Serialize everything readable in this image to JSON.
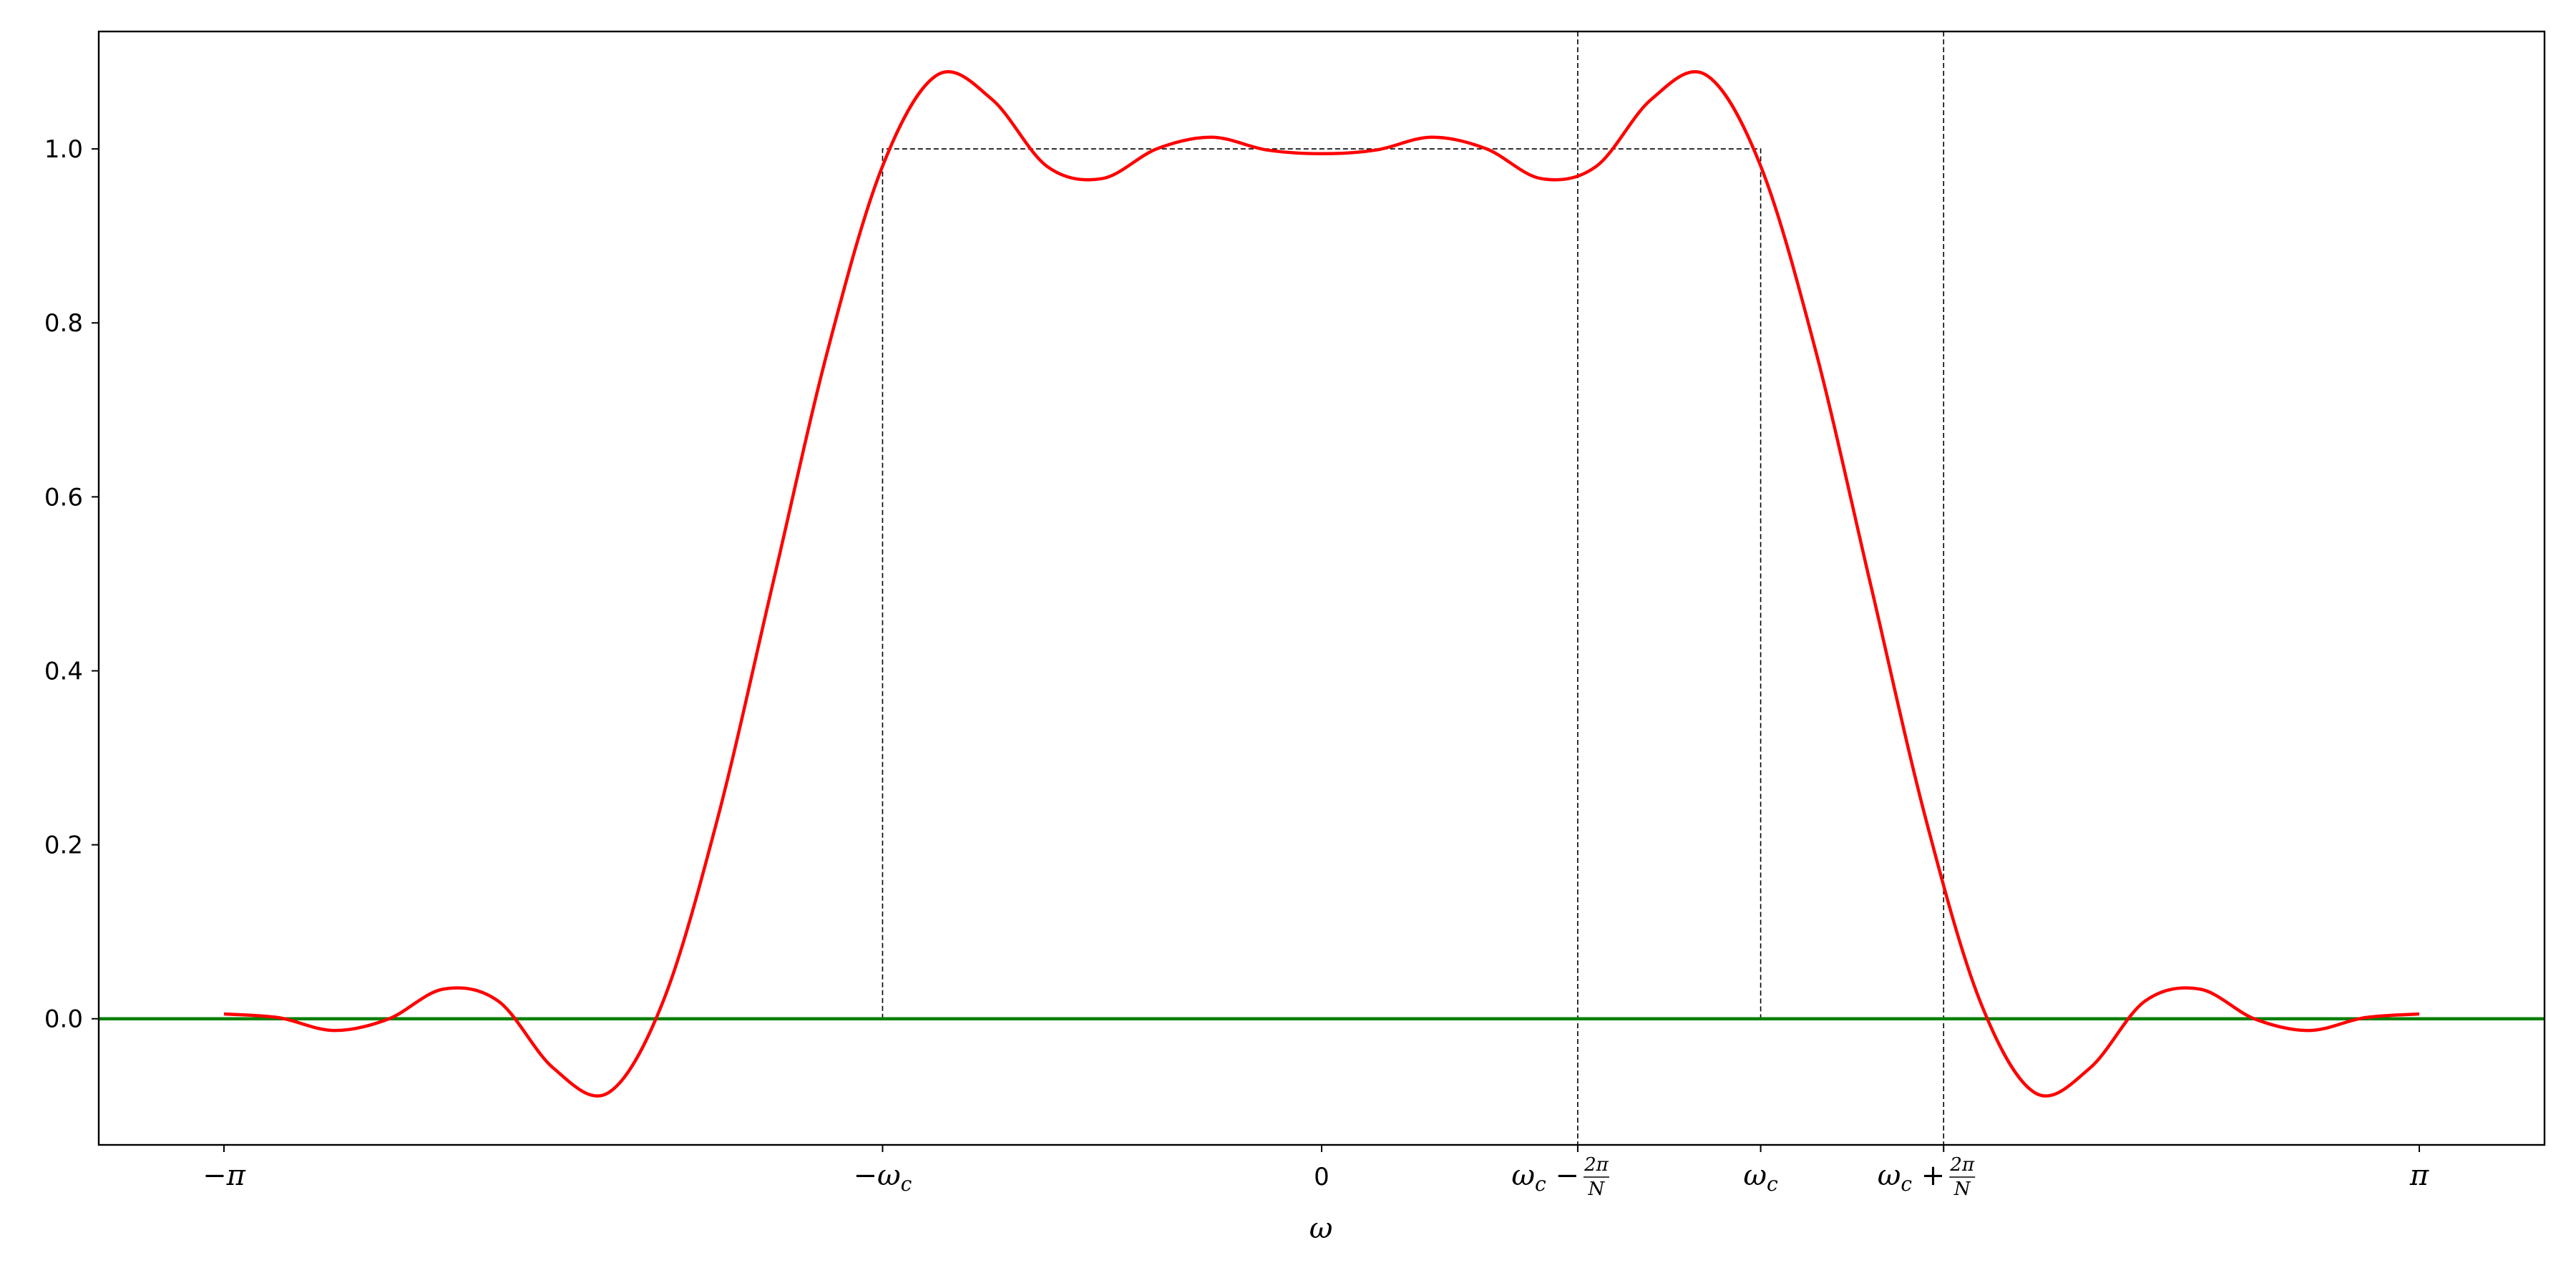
{
  "chart_data": {
    "type": "line",
    "title": "",
    "xlabel": "ω",
    "ylabel": "",
    "xlim": [
      -3.5,
      3.5
    ],
    "ylim": [
      -0.145,
      1.135
    ],
    "yticks": [
      0.0,
      0.2,
      0.4,
      0.6,
      0.8,
      1.0
    ],
    "ytick_labels": [
      "0.0",
      "0.2",
      "0.4",
      "0.6",
      "0.8",
      "1.0"
    ],
    "xticks": [
      {
        "x": -3.1416,
        "label": "−π"
      },
      {
        "x": -1.2566,
        "label": "−ω_c"
      },
      {
        "x": 0.0,
        "label": "0"
      },
      {
        "x": 0.733,
        "label": "ω_c − 2π/N"
      },
      {
        "x": 1.2566,
        "label": "ω_c"
      },
      {
        "x": 1.7802,
        "label": "ω_c + 2π/N"
      },
      {
        "x": 3.1416,
        "label": "π"
      }
    ],
    "vlines": [
      0.733,
      1.7802
    ],
    "ideal_response": {
      "x": [
        -1.2566,
        -1.2566,
        1.2566,
        1.2566
      ],
      "y": [
        0.0,
        1.0,
        1.0,
        0.0
      ]
    },
    "zero_line": 0.0,
    "grid": false,
    "colors": {
      "response": "#ff0000",
      "zero_line": "#008000",
      "guides": "#000000"
    },
    "series": [
      {
        "x": [
          -3.1416,
          -2.9845,
          -2.8274,
          -2.6704,
          -2.5133,
          -2.3562,
          -2.1991,
          -2.042,
          -1.885,
          -1.7279,
          -1.5708,
          -1.4137,
          -1.2566,
          -1.0996,
          -0.9425,
          -0.7854,
          -0.6283,
          -0.4712,
          -0.3142,
          -0.1571,
          0.0,
          0.1571,
          0.3142,
          0.4712,
          0.6283,
          0.7854,
          0.9425,
          1.0996,
          1.2566,
          1.4137,
          1.5708,
          1.7279,
          1.885,
          2.042,
          2.1991,
          2.3562,
          2.5133,
          2.6704,
          2.8274,
          2.9845,
          3.1416
        ],
        "y": [
          0.0055,
          0.0012,
          -0.0135,
          -0.0002,
          0.0341,
          0.0202,
          -0.0566,
          -0.0852,
          0.0197,
          0.2316,
          0.5,
          0.7684,
          0.9803,
          1.0852,
          1.0566,
          0.9798,
          0.9659,
          1.0002,
          1.0135,
          0.9988,
          0.9945,
          0.9988,
          1.0135,
          1.0002,
          0.9659,
          0.9798,
          1.0566,
          1.0852,
          0.9803,
          0.7684,
          0.5,
          0.2316,
          0.0197,
          -0.0852,
          -0.0566,
          0.0202,
          0.0341,
          -0.0002,
          -0.0135,
          0.0012,
          0.0055
        ]
      }
    ]
  }
}
